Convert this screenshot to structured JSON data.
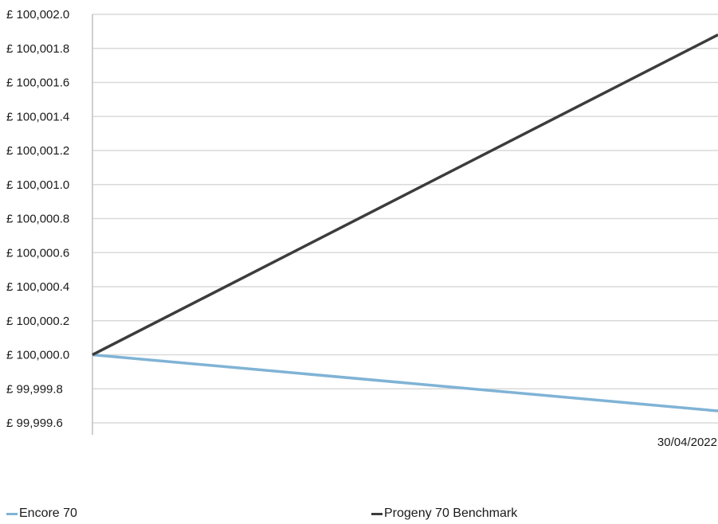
{
  "chart_data": {
    "type": "line",
    "title": "",
    "xlabel": "",
    "ylabel": "",
    "x": [
      "",
      "30/04/2022"
    ],
    "x_tick_labels": [
      "30/04/2022"
    ],
    "ylim": [
      99999.6,
      100002.0
    ],
    "y_ticks": [
      100002.0,
      100001.8,
      100001.6,
      100001.4,
      100001.2,
      100001.0,
      100000.8,
      100000.6,
      100000.4,
      100000.2,
      100000.0,
      99999.8,
      99999.6
    ],
    "y_tick_labels": [
      "£ 100,002.0",
      "£ 100,001.8",
      "£ 100,001.6",
      "£ 100,001.4",
      "£ 100,001.2",
      "£ 100,001.0",
      "£ 100,000.8",
      "£ 100,000.6",
      "£ 100,000.4",
      "£ 100,000.2",
      "£ 100,000.0",
      "£ 99,999.8",
      "£ 99,999.6"
    ],
    "grid": true,
    "legend_position": "bottom",
    "series": [
      {
        "name": "Encore 70",
        "values": [
          100000.0,
          99999.67
        ],
        "color": "#7fb3d5"
      },
      {
        "name": "Progeny 70 Benchmark",
        "values": [
          100000.0,
          100001.88
        ],
        "color": "#3c3c3c"
      }
    ]
  },
  "colors": {
    "grid": "#d9d9d9",
    "axis": "#bfbfbf"
  }
}
